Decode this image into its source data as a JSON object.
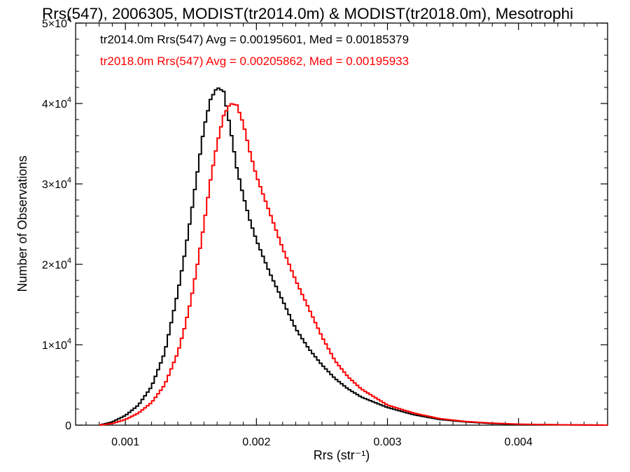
{
  "chart_data": {
    "type": "line",
    "style": "histogram-step",
    "title": "Rrs(547), 2006305, MODIST(tr2014.0m) & MODIST(tr2018.0m), Mesotrophi",
    "xlabel": "Rrs (str⁻¹)",
    "ylabel": "Number of Observations",
    "xlim": [
      0.00062,
      0.00468
    ],
    "ylim": [
      0,
      50000
    ],
    "xticks": [
      {
        "value": 0.001,
        "label": "0.001"
      },
      {
        "value": 0.002,
        "label": "0.002"
      },
      {
        "value": 0.003,
        "label": "0.003"
      },
      {
        "value": 0.004,
        "label": "0.004"
      }
    ],
    "yticks": [
      {
        "value": 0,
        "mant": "0",
        "exp": ""
      },
      {
        "value": 10000,
        "mant": "1×10",
        "exp": "4"
      },
      {
        "value": 20000,
        "mant": "2×10",
        "exp": "4"
      },
      {
        "value": 30000,
        "mant": "3×10",
        "exp": "4"
      },
      {
        "value": 40000,
        "mant": "4×10",
        "exp": "4"
      },
      {
        "value": 50000,
        "mant": "5×10",
        "exp": "4"
      }
    ],
    "legend_position": "top-left",
    "series": [
      {
        "name": "tr2014.0m",
        "color": "#000000",
        "annotation": "tr2014.0m Rrs(547) Avg = 0.00195601, Med = 0.00185379",
        "x": [
          0.0008,
          0.0009,
          0.001,
          0.0011,
          0.0012,
          0.0013,
          0.0014,
          0.00145,
          0.0015,
          0.00155,
          0.0016,
          0.00165,
          0.0017,
          0.00175,
          0.0018,
          0.00185,
          0.0019,
          0.00195,
          0.002,
          0.0021,
          0.0022,
          0.0023,
          0.0024,
          0.0025,
          0.0026,
          0.0027,
          0.0028,
          0.003,
          0.0032,
          0.0034,
          0.0036,
          0.0038,
          0.004,
          0.0043,
          0.00468
        ],
        "y": [
          0,
          400,
          1200,
          2500,
          4800,
          9000,
          16500,
          21000,
          26000,
          31500,
          37000,
          40500,
          42000,
          41500,
          37000,
          32000,
          28500,
          25500,
          23000,
          19000,
          15500,
          12000,
          9500,
          7500,
          5800,
          4500,
          3500,
          2200,
          1300,
          700,
          400,
          200,
          100,
          50,
          0
        ]
      },
      {
        "name": "tr2018.0m",
        "color": "#ff0000",
        "annotation": "tr2018.0m Rrs(547) Avg = 0.00205862, Med = 0.00195933",
        "x": [
          0.0008,
          0.0009,
          0.001,
          0.0011,
          0.0012,
          0.0013,
          0.0014,
          0.00145,
          0.0015,
          0.00155,
          0.0016,
          0.00165,
          0.0017,
          0.00175,
          0.0018,
          0.00185,
          0.0019,
          0.00195,
          0.002,
          0.0021,
          0.0022,
          0.0023,
          0.0024,
          0.0025,
          0.0026,
          0.0027,
          0.0028,
          0.003,
          0.0032,
          0.0034,
          0.0036,
          0.0038,
          0.004,
          0.0043,
          0.00468
        ],
        "y": [
          0,
          200,
          700,
          1500,
          2800,
          5000,
          9000,
          12000,
          15500,
          20000,
          25000,
          30500,
          35000,
          38500,
          40000,
          39800,
          37500,
          34000,
          31000,
          26500,
          22000,
          18000,
          14500,
          11000,
          8000,
          6000,
          4500,
          2500,
          1500,
          800,
          450,
          250,
          120,
          50,
          0
        ]
      }
    ]
  }
}
